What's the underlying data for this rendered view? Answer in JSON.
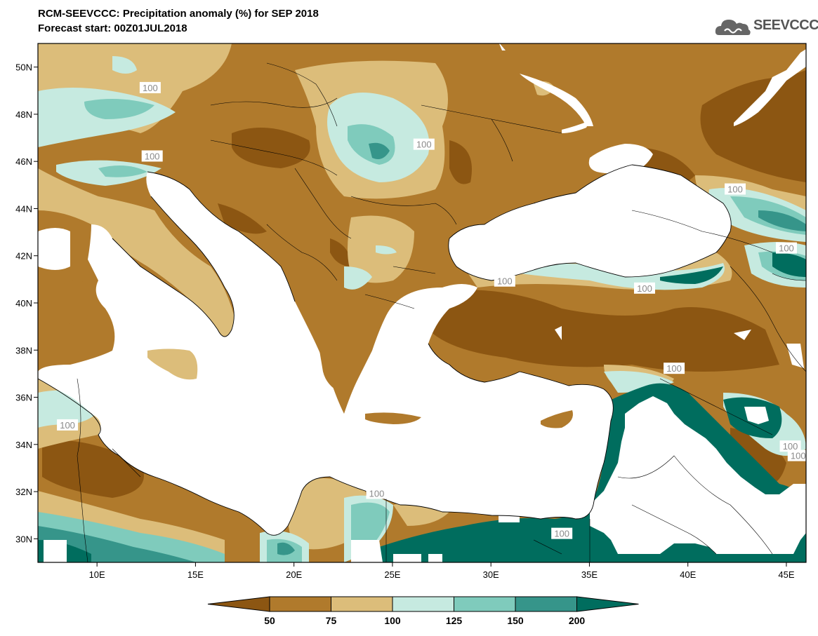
{
  "header": {
    "title": "RCM-SEEVCCC: Precipitation anomaly (%) for SEP 2018",
    "subtitle": "Forecast start: 00Z01JUL2018",
    "logo_text": "SEEVCCC"
  },
  "colors": {
    "c_lt50": "#8c5612",
    "c_50_75": "#b07a2c",
    "c_75_100": "#dcbd7a",
    "c_100_125": "#c6eae0",
    "c_125_150": "#7fcbbc",
    "c_150_200": "#36958a",
    "c_gt200": "#006d5e",
    "sea": "#ffffff"
  },
  "chart_data": {
    "type": "heatmap",
    "title": "RCM-SEEVCCC: Precipitation anomaly (%) for SEP 2018",
    "xlim": [
      7,
      46
    ],
    "ylim": [
      29,
      51
    ],
    "x_ticks": [
      {
        "value": 10,
        "label": "10E"
      },
      {
        "value": 15,
        "label": "15E"
      },
      {
        "value": 20,
        "label": "20E"
      },
      {
        "value": 25,
        "label": "25E"
      },
      {
        "value": 30,
        "label": "30E"
      },
      {
        "value": 35,
        "label": "35E"
      },
      {
        "value": 40,
        "label": "40E"
      },
      {
        "value": 45,
        "label": "45E"
      }
    ],
    "y_ticks": [
      {
        "value": 30,
        "label": "30N"
      },
      {
        "value": 32,
        "label": "32N"
      },
      {
        "value": 34,
        "label": "34N"
      },
      {
        "value": 36,
        "label": "36N"
      },
      {
        "value": 38,
        "label": "38N"
      },
      {
        "value": 40,
        "label": "40N"
      },
      {
        "value": 42,
        "label": "42N"
      },
      {
        "value": 44,
        "label": "44N"
      },
      {
        "value": 46,
        "label": "46N"
      },
      {
        "value": 48,
        "label": "48N"
      },
      {
        "value": 50,
        "label": "50N"
      }
    ],
    "contour_labels": [
      {
        "text": "100",
        "lon": 12.7,
        "lat": 49.1
      },
      {
        "text": "100",
        "lon": 12.8,
        "lat": 46.2
      },
      {
        "text": "100",
        "lon": 26.6,
        "lat": 46.7
      },
      {
        "text": "100",
        "lon": 42.4,
        "lat": 44.8
      },
      {
        "text": "100",
        "lon": 45.0,
        "lat": 42.3
      },
      {
        "text": "100",
        "lon": 30.7,
        "lat": 40.9
      },
      {
        "text": "100",
        "lon": 37.8,
        "lat": 40.6
      },
      {
        "text": "100",
        "lon": 39.3,
        "lat": 37.2
      },
      {
        "text": "100",
        "lon": 8.5,
        "lat": 34.8
      },
      {
        "text": "100",
        "lon": 24.2,
        "lat": 31.9
      },
      {
        "text": "100",
        "lon": 33.6,
        "lat": 30.2
      },
      {
        "text": "100",
        "lon": 45.2,
        "lat": 33.9
      },
      {
        "text": "100",
        "lon": 45.6,
        "lat": 33.5
      }
    ],
    "levels": [
      "50",
      "75",
      "100",
      "125",
      "150",
      "200"
    ]
  }
}
